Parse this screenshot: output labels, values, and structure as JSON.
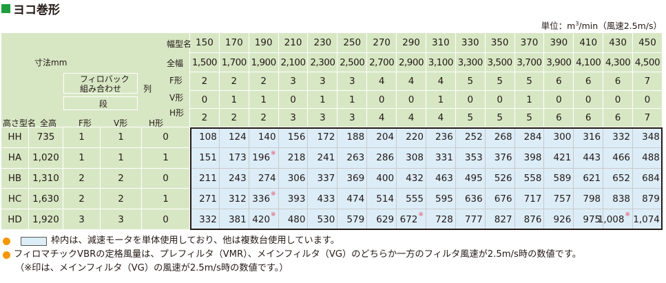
{
  "title": "ヨコ巻形",
  "unit": {
    "prefix": "単位：m",
    "sup": "3",
    "suffix": "/min（風速2.5m/s）"
  },
  "header_labels": {
    "width_model": "幅型名",
    "dimension": "寸法mm",
    "full_width": "全幅",
    "prefilter_combo_line1": "フィロバック",
    "prefilter_combo_line2": "組み合わせ",
    "column": "列",
    "stage": "段",
    "f_type_row": "F形",
    "v_type_row": "V形",
    "h_type_row": "H形",
    "height_model": "高さ型名",
    "full_height": "全高",
    "f_type": "F形",
    "v_type": "V形",
    "h_type": "H形"
  },
  "widths": [
    "150",
    "170",
    "190",
    "210",
    "230",
    "250",
    "270",
    "290",
    "310",
    "330",
    "350",
    "370",
    "390",
    "410",
    "430",
    "450"
  ],
  "full_widths": [
    "1,500",
    "1,700",
    "1,900",
    "2,100",
    "2,300",
    "2,500",
    "2,700",
    "2,900",
    "3,100",
    "3,300",
    "3,500",
    "3,700",
    "3,900",
    "4,100",
    "4,300",
    "4,500"
  ],
  "col_f": [
    "2",
    "2",
    "2",
    "3",
    "3",
    "3",
    "4",
    "4",
    "4",
    "5",
    "5",
    "5",
    "6",
    "6",
    "6",
    "7"
  ],
  "col_v": [
    "0",
    "1",
    "1",
    "0",
    "1",
    "1",
    "0",
    "0",
    "1",
    "0",
    "0",
    "1",
    "0",
    "0",
    "0",
    "0"
  ],
  "col_h": [
    "2",
    "2",
    "2",
    "3",
    "3",
    "3",
    "4",
    "4",
    "4",
    "5",
    "5",
    "5",
    "6",
    "6",
    "6",
    "7"
  ],
  "rows": [
    {
      "model": "HH",
      "height": "735",
      "f": "1",
      "v": "1",
      "h": "0",
      "values": [
        "108",
        "124",
        "140",
        "156",
        "172",
        "188",
        "204",
        "220",
        "236",
        "252",
        "268",
        "284",
        "300",
        "316",
        "332",
        "348"
      ],
      "marked": [],
      "highlight": [
        0,
        1,
        2,
        3,
        4,
        5,
        6,
        7,
        8,
        9,
        10,
        11,
        12,
        13,
        14,
        15
      ]
    },
    {
      "model": "HA",
      "height": "1,020",
      "f": "1",
      "v": "1",
      "h": "1",
      "values": [
        "151",
        "173",
        "196",
        "218",
        "241",
        "263",
        "286",
        "308",
        "331",
        "353",
        "376",
        "398",
        "421",
        "443",
        "466",
        "488"
      ],
      "marked": [
        2
      ],
      "highlight": [
        0,
        1,
        2,
        3,
        4,
        5,
        6,
        7,
        8,
        9,
        10,
        11,
        12,
        13,
        14,
        15
      ]
    },
    {
      "model": "HB",
      "height": "1,310",
      "f": "2",
      "v": "2",
      "h": "0",
      "values": [
        "211",
        "243",
        "274",
        "306",
        "337",
        "369",
        "400",
        "432",
        "463",
        "495",
        "526",
        "558",
        "589",
        "621",
        "652",
        "684"
      ],
      "marked": [],
      "highlight": [
        0,
        1,
        2,
        3,
        4,
        5,
        6,
        7,
        8,
        9,
        10,
        11,
        12,
        13,
        14,
        15
      ]
    },
    {
      "model": "HC",
      "height": "1,630",
      "f": "2",
      "v": "2",
      "h": "1",
      "values": [
        "271",
        "312",
        "336",
        "393",
        "433",
        "474",
        "514",
        "555",
        "595",
        "636",
        "676",
        "717",
        "757",
        "798",
        "838",
        "879"
      ],
      "marked": [
        2
      ],
      "highlight": [
        0,
        1,
        2,
        3,
        4,
        5,
        6,
        7,
        8,
        9,
        10,
        11,
        12,
        13,
        14,
        15
      ]
    },
    {
      "model": "HD",
      "height": "1,920",
      "f": "3",
      "v": "3",
      "h": "0",
      "values": [
        "332",
        "381",
        "420",
        "480",
        "530",
        "579",
        "629",
        "672",
        "728",
        "777",
        "827",
        "876",
        "926",
        "975",
        "1,008",
        "1,074"
      ],
      "marked": [
        2,
        7,
        14
      ],
      "highlight": [
        0,
        1,
        2,
        3,
        4,
        5,
        6,
        7,
        8,
        9,
        10,
        11,
        12,
        13,
        14,
        15
      ]
    }
  ],
  "mark_symbol": "※",
  "notes": {
    "note1": "枠内は、減速モータを単体使用しており、他は複数台使用しています。",
    "note2": "フィロマチックVBRの定格風量は、プレフィルタ（VMR）、メインフィルタ（VG）のどちらか一方のフィルタ風速が2.5m/s時の数値です。",
    "note3": "（※印は、メインフィルタ（VG）の風速が2.5m/s時の数値です。）"
  },
  "colors": {
    "header_green": "#d7e7c4",
    "data_blue": "#dcedf8",
    "accent_green": "#1e9e3e",
    "bullet_orange": "#f39800",
    "mark_red": "#e94a5a"
  }
}
